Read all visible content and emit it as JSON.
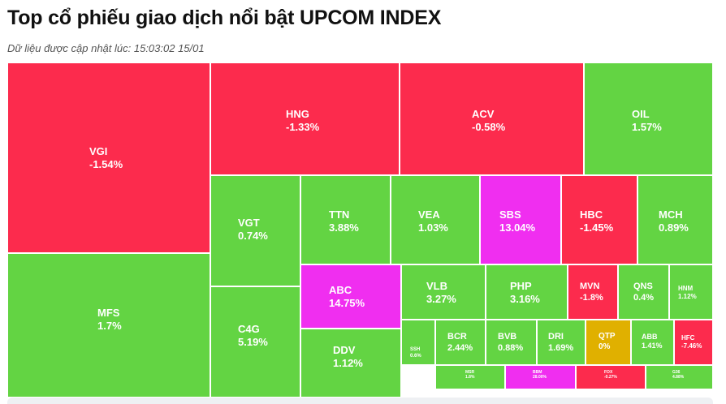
{
  "header": {
    "title": "Top cổ phiếu giao dịch nổi bật UPCOM INDEX",
    "updated": "Dữ liệu được cập nhật lúc: 15:03:02 15/01"
  },
  "colors": {
    "up": "#63d443",
    "down": "#fc2b4d",
    "ceiling": "#f02ef0",
    "unchanged": "#e0b000",
    "floor": "#fc2b4d"
  },
  "chart_data": {
    "type": "treemap",
    "title": "Top cổ phiếu giao dịch nổi bật UPCOM INDEX",
    "tiles": [
      {
        "ticker": "VGI",
        "change": "-1.54%",
        "state": "down"
      },
      {
        "ticker": "MFS",
        "change": "1.7%",
        "state": "up"
      },
      {
        "ticker": "HNG",
        "change": "-1.33%",
        "state": "down"
      },
      {
        "ticker": "ACV",
        "change": "-0.58%",
        "state": "down"
      },
      {
        "ticker": "OIL",
        "change": "1.57%",
        "state": "up"
      },
      {
        "ticker": "VGT",
        "change": "0.74%",
        "state": "up"
      },
      {
        "ticker": "C4G",
        "change": "5.19%",
        "state": "up"
      },
      {
        "ticker": "TTN",
        "change": "3.88%",
        "state": "up"
      },
      {
        "ticker": "VEA",
        "change": "1.03%",
        "state": "up"
      },
      {
        "ticker": "SBS",
        "change": "13.04%",
        "state": "ceiling"
      },
      {
        "ticker": "HBC",
        "change": "-1.45%",
        "state": "down"
      },
      {
        "ticker": "MCH",
        "change": "0.89%",
        "state": "up"
      },
      {
        "ticker": "ABC",
        "change": "14.75%",
        "state": "ceiling"
      },
      {
        "ticker": "DDV",
        "change": "1.12%",
        "state": "up"
      },
      {
        "ticker": "VLB",
        "change": "3.27%",
        "state": "up"
      },
      {
        "ticker": "PHP",
        "change": "3.16%",
        "state": "up"
      },
      {
        "ticker": "MVN",
        "change": "-1.8%",
        "state": "down"
      },
      {
        "ticker": "QNS",
        "change": "0.4%",
        "state": "up"
      },
      {
        "ticker": "HNM",
        "change": "1.12%",
        "state": "up"
      },
      {
        "ticker": "SSH",
        "change": "0.6%",
        "state": "up"
      },
      {
        "ticker": "BCR",
        "change": "2.44%",
        "state": "up"
      },
      {
        "ticker": "BVB",
        "change": "0.88%",
        "state": "up"
      },
      {
        "ticker": "DRI",
        "change": "1.69%",
        "state": "up"
      },
      {
        "ticker": "QTP",
        "change": "0%",
        "state": "unchanged"
      },
      {
        "ticker": "ABB",
        "change": "1.41%",
        "state": "up"
      },
      {
        "ticker": "HFC",
        "change": "-7.46%",
        "state": "floor"
      },
      {
        "ticker": "MSR",
        "change": "1.8%",
        "state": "up"
      },
      {
        "ticker": "BBM",
        "change": "28.00%",
        "state": "ceiling"
      },
      {
        "ticker": "FOX",
        "change": "-0.27%",
        "state": "down"
      },
      {
        "ticker": "G36",
        "change": "4.88%",
        "state": "up"
      }
    ]
  }
}
